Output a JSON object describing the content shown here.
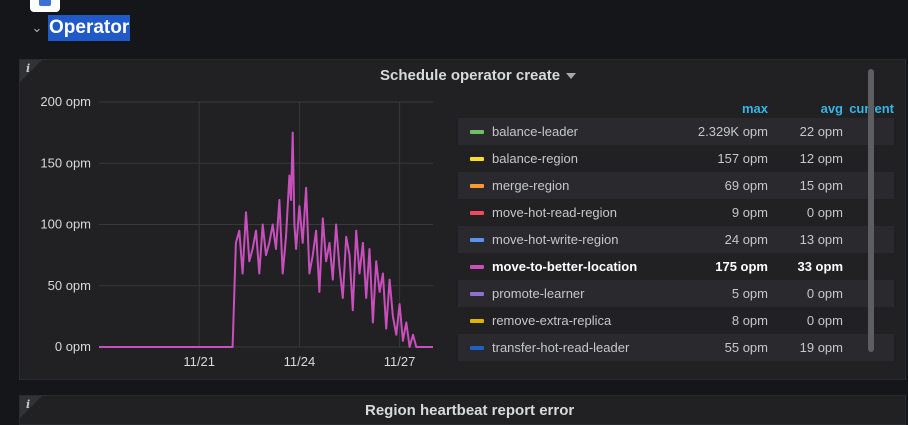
{
  "row": {
    "title": "Operator",
    "collapse_icon": "chevron-down-icon"
  },
  "panel": {
    "title": "Schedule operator create",
    "info_label": "i",
    "legend": {
      "headers": {
        "max": "max",
        "avg": "avg",
        "current": "current"
      },
      "items": [
        {
          "name": "balance-leader",
          "color": "#73bf69",
          "max": "2.329K opm",
          "avg": "22 opm",
          "current": ""
        },
        {
          "name": "balance-region",
          "color": "#fade2a",
          "max": "157 opm",
          "avg": "12 opm",
          "current": ""
        },
        {
          "name": "merge-region",
          "color": "#ff9830",
          "max": "69 opm",
          "avg": "15 opm",
          "current": ""
        },
        {
          "name": "move-hot-read-region",
          "color": "#f2495c",
          "max": "9 opm",
          "avg": "0 opm",
          "current": ""
        },
        {
          "name": "move-hot-write-region",
          "color": "#5794f2",
          "max": "24 opm",
          "avg": "13 opm",
          "current": ""
        },
        {
          "name": "move-to-better-location",
          "color": "#c94fbd",
          "max": "175 opm",
          "avg": "33 opm",
          "current": "",
          "highlighted": true
        },
        {
          "name": "promote-learner",
          "color": "#8f6fd1",
          "max": "5 opm",
          "avg": "0 opm",
          "current": ""
        },
        {
          "name": "remove-extra-replica",
          "color": "#e0b400",
          "max": "8 opm",
          "avg": "0 opm",
          "current": ""
        },
        {
          "name": "transfer-hot-read-leader",
          "color": "#1f60c4",
          "max": "55 opm",
          "avg": "19 opm",
          "current": ""
        }
      ]
    }
  },
  "chart_data": {
    "type": "line",
    "ylim": [
      0,
      200
    ],
    "y_ticks": [
      0,
      50,
      100,
      150,
      200
    ],
    "y_tick_labels": [
      "0 opm",
      "50 opm",
      "100 opm",
      "150 opm",
      "200 opm"
    ],
    "x_range_days": [
      18.0,
      28.0
    ],
    "x_ticks": [
      21,
      24,
      27
    ],
    "x_tick_labels": [
      "11/21",
      "11/24",
      "11/27"
    ],
    "grid": true,
    "series": [
      {
        "name": "move-to-better-location",
        "color": "#c94fbd",
        "x": [
          18.0,
          19.0,
          20.0,
          21.0,
          21.9,
          22.0,
          22.1,
          22.2,
          22.3,
          22.4,
          22.5,
          22.6,
          22.7,
          22.8,
          22.9,
          23.0,
          23.1,
          23.2,
          23.3,
          23.4,
          23.5,
          23.6,
          23.7,
          23.75,
          23.8,
          23.85,
          23.9,
          24.0,
          24.1,
          24.2,
          24.3,
          24.4,
          24.5,
          24.6,
          24.7,
          24.8,
          24.9,
          25.0,
          25.1,
          25.2,
          25.3,
          25.4,
          25.5,
          25.6,
          25.7,
          25.8,
          25.9,
          26.0,
          26.1,
          26.2,
          26.3,
          26.4,
          26.5,
          26.6,
          26.7,
          26.8,
          26.9,
          27.0,
          27.1,
          27.2,
          27.3,
          27.4,
          27.5,
          27.6,
          27.8,
          28.0
        ],
        "y": [
          0,
          0,
          0,
          0,
          0,
          0,
          85,
          95,
          60,
          110,
          70,
          80,
          95,
          60,
          100,
          75,
          85,
          100,
          80,
          120,
          60,
          90,
          140,
          120,
          175,
          100,
          80,
          115,
          85,
          130,
          60,
          75,
          95,
          45,
          105,
          70,
          85,
          55,
          100,
          65,
          40,
          90,
          75,
          30,
          95,
          60,
          85,
          40,
          80,
          20,
          70,
          45,
          60,
          15,
          55,
          25,
          10,
          35,
          5,
          20,
          0,
          10,
          0,
          0,
          0,
          0
        ]
      }
    ]
  },
  "panel2": {
    "title": "Region heartbeat report error",
    "info_label": "i"
  }
}
